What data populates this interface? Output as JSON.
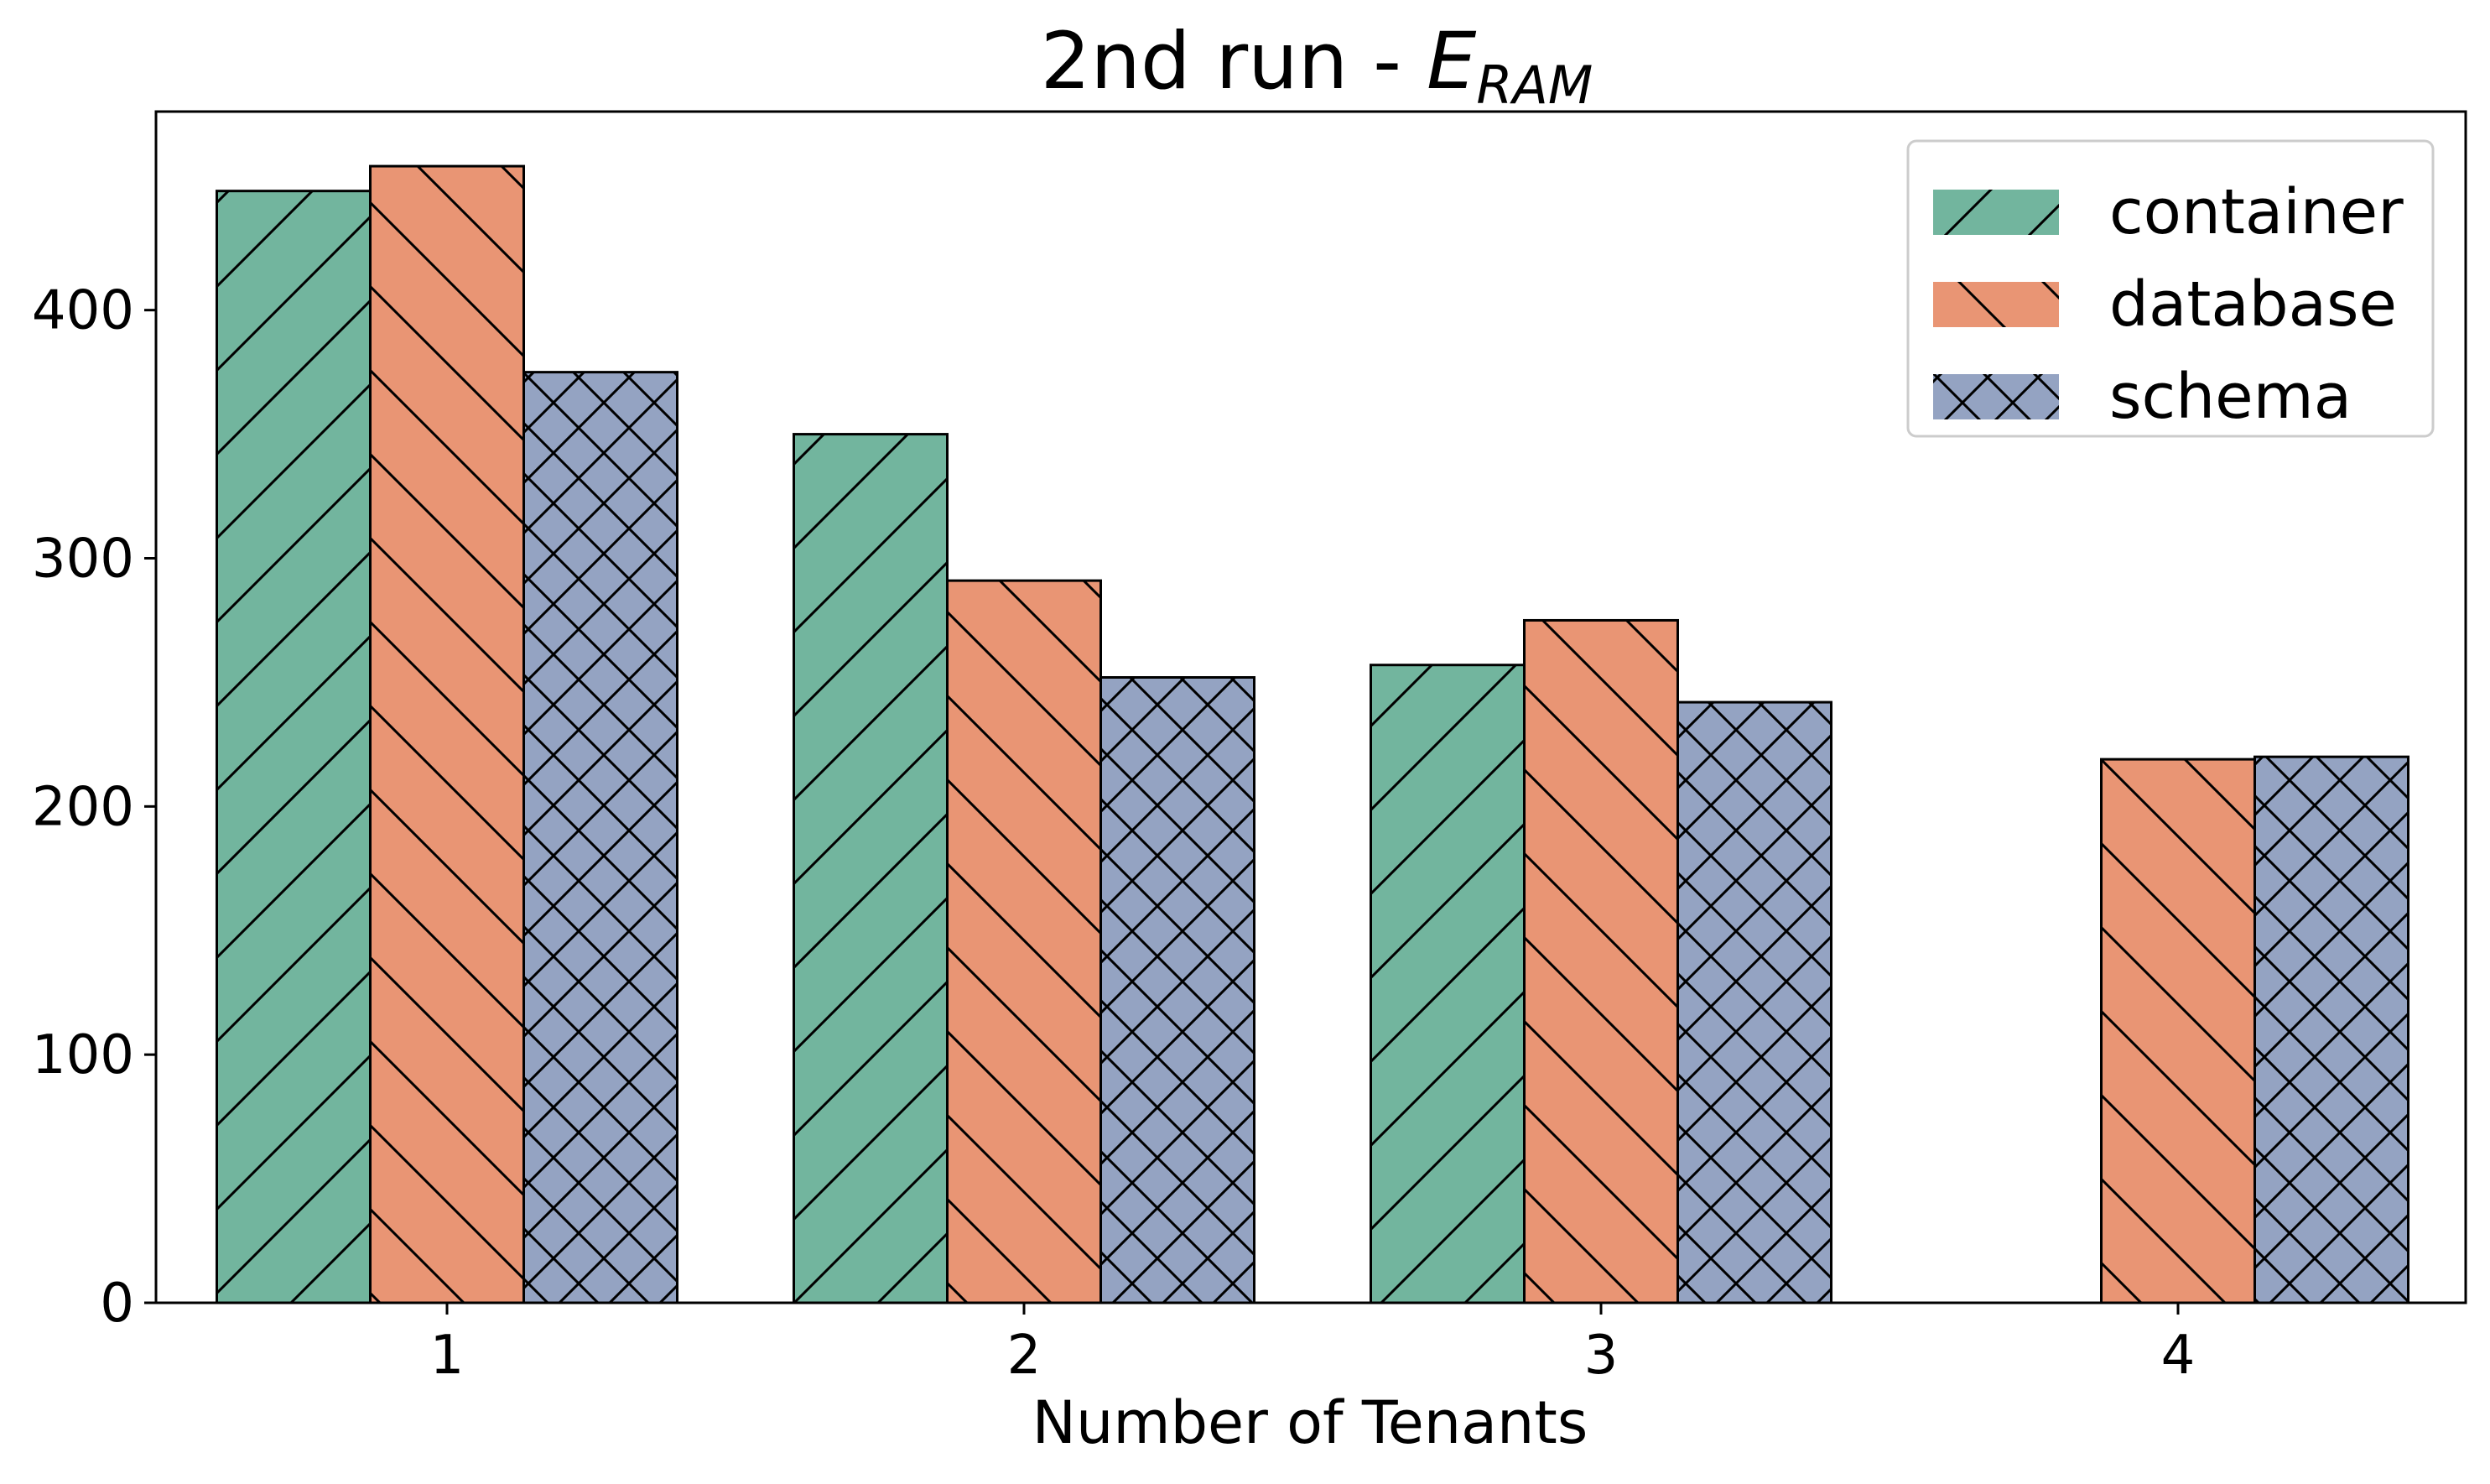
{
  "chart_data": {
    "type": "bar",
    "title": "2nd run - ",
    "title_math": "E",
    "title_subscript": "RAM",
    "xlabel": "Number of Tenants",
    "ylabel": "",
    "categories": [
      "1",
      "2",
      "3",
      "4"
    ],
    "ylim": [
      0,
      480
    ],
    "yticks": [
      0,
      100,
      200,
      300,
      400
    ],
    "series": [
      {
        "name": "container",
        "color": "#72b59e",
        "hatch": "forward-diagonal",
        "values": [
          448,
          350,
          257,
          null
        ]
      },
      {
        "name": "database",
        "color": "#e99574",
        "hatch": "back-diagonal",
        "values": [
          458,
          291,
          275,
          219
        ]
      },
      {
        "name": "schema",
        "color": "#94a3c2",
        "hatch": "cross",
        "values": [
          375,
          252,
          242,
          220
        ]
      }
    ],
    "legend_position": "top-right",
    "grid": false
  }
}
